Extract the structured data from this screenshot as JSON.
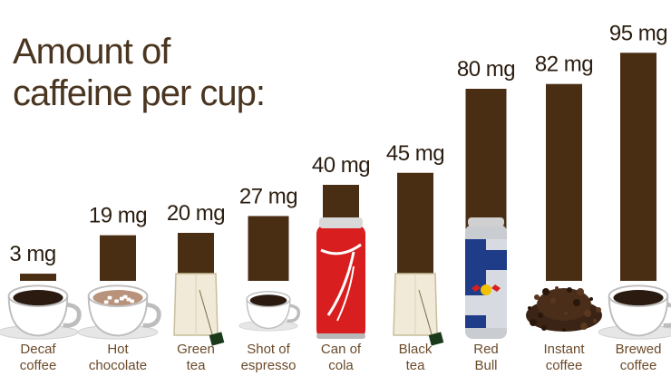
{
  "chart_data": {
    "type": "bar",
    "title_lines": [
      "Amount of",
      "caffeine per cup:"
    ],
    "unit": "mg",
    "categories": [
      [
        "Decaf",
        "coffee"
      ],
      [
        "Hot",
        "chocolate"
      ],
      [
        "Green",
        "tea"
      ],
      [
        "Shot of",
        "espresso"
      ],
      [
        "Can of",
        "cola"
      ],
      [
        "Black",
        "tea"
      ],
      [
        "Red",
        "Bull"
      ],
      [
        "Instant",
        "coffee"
      ],
      [
        "Brewed",
        "coffee"
      ]
    ],
    "values": [
      3,
      19,
      20,
      27,
      40,
      45,
      80,
      82,
      95
    ],
    "value_labels": [
      "3 mg",
      "19 mg",
      "20 mg",
      "27 mg",
      "40 mg",
      "45 mg",
      "80 mg",
      "82 mg",
      "95 mg"
    ],
    "drink_icons": [
      "coffee-cup-icon",
      "hot-chocolate-cup-icon",
      "tea-bag-icon",
      "espresso-cup-icon",
      "cola-can-icon",
      "tea-bag-icon",
      "energy-drink-can-icon",
      "coffee-granules-icon",
      "coffee-cup-icon"
    ],
    "colors": {
      "bar": "#4a2e14",
      "value_text": "#2b1d10",
      "category_text": "#6b4a2a",
      "coffee": "#2a1a10",
      "hot_chocolate": "#b8927a",
      "tea_bag": "#f1ead8",
      "cola": "#d81e1e",
      "energy_drink_blue": "#1f3c88",
      "energy_drink_silver": "#c9ccd1"
    },
    "grid": false,
    "legend": "none"
  }
}
